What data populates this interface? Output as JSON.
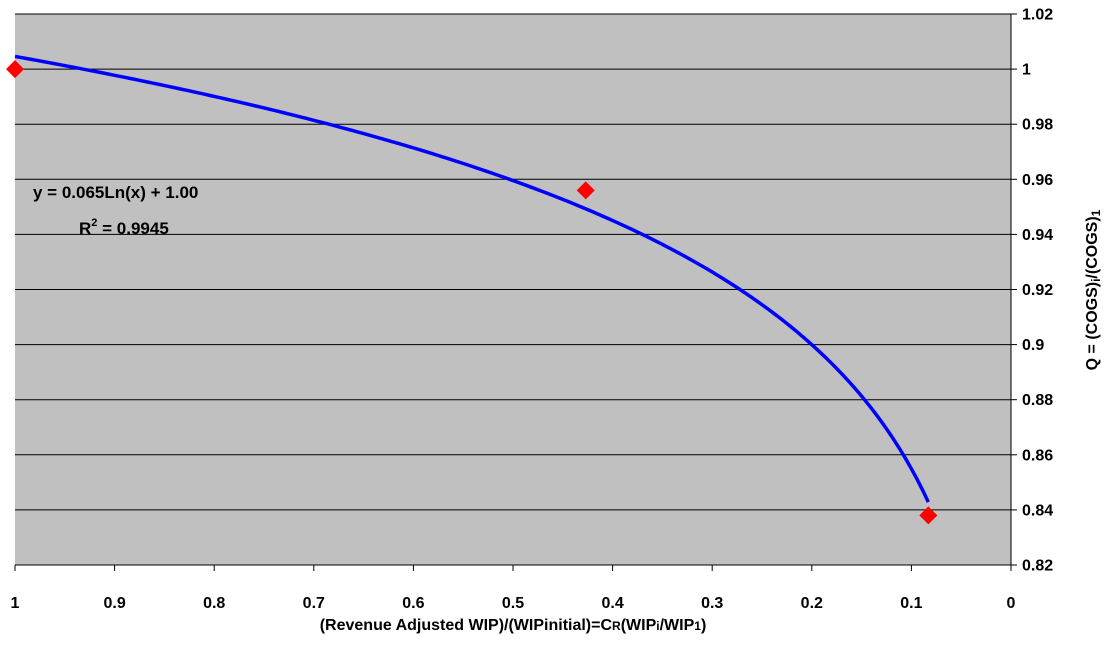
{
  "chart_data": {
    "type": "scatter",
    "xlabel": {
      "parts": [
        "(Revenue Adjusted WIP)/(WIPinitial)=C",
        "R",
        "(WIP",
        "i",
        "/WIP",
        "1",
        ")"
      ]
    },
    "ylabel": {
      "parts": [
        "Q = (COGS)",
        "i",
        "/(COGS)",
        "1"
      ]
    },
    "xlim": [
      1,
      0
    ],
    "ylim": [
      0.82,
      1.02
    ],
    "x_ticks": [
      "1",
      "0.9",
      "0.8",
      "0.7",
      "0.6",
      "0.5",
      "0.4",
      "0.3",
      "0.2",
      "0.1",
      "0"
    ],
    "x_tick_values": [
      1,
      0.9,
      0.8,
      0.7,
      0.6,
      0.5,
      0.4,
      0.3,
      0.2,
      0.1,
      0
    ],
    "y_ticks": [
      "0.82",
      "0.84",
      "0.86",
      "0.88",
      "0.9",
      "0.92",
      "0.94",
      "0.96",
      "0.98",
      "1",
      "1.02"
    ],
    "y_tick_values": [
      0.82,
      0.84,
      0.86,
      0.88,
      0.9,
      0.92,
      0.94,
      0.96,
      0.98,
      1,
      1.02
    ],
    "grid": true,
    "series": [
      {
        "type": "scatter",
        "marker": "diamond",
        "color": "#ff0000",
        "points": [
          {
            "x": 1.0,
            "y": 1.0
          },
          {
            "x": 0.427,
            "y": 0.956
          },
          {
            "x": 0.083,
            "y": 0.838
          }
        ]
      },
      {
        "type": "trendline",
        "color": "#0000ff",
        "formula": "log",
        "a": 0.065,
        "b": 1.0046,
        "x_range": [
          0.083,
          1.0
        ]
      }
    ],
    "annotations": {
      "equation": "y = 0.065Ln(x) + 1.00",
      "r2_label": "R",
      "r2_sup": "2",
      "r2_value": " = 0.9945"
    },
    "colors": {
      "plot_background": "#c0c0c0",
      "gridline": "#000000"
    }
  }
}
